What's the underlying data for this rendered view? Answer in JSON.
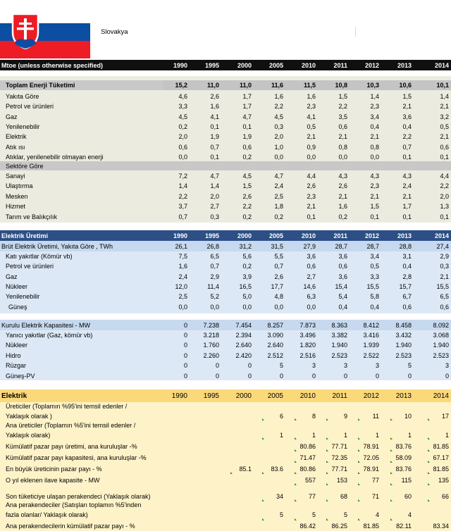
{
  "country": "Slovakya",
  "header": {
    "unit_label": "Mtoe (unless otherwise specified)",
    "years": [
      "1990",
      "1995",
      "2000",
      "2005",
      "2010",
      "2011",
      "2012",
      "2013",
      "2014"
    ]
  },
  "energy": {
    "total_label": "Toplam Enerji Tüketimi",
    "total_values": [
      "15,2",
      "11,0",
      "11,0",
      "11,6",
      "11,5",
      "10,8",
      "10,3",
      "10,6",
      "10,1"
    ],
    "by_fuel_rows": [
      {
        "label": "Yakıta Göre",
        "values": [
          "4,6",
          "2,6",
          "1,7",
          "1,6",
          "1,6",
          "1,5",
          "1,4",
          "1,5",
          "1,4"
        ]
      },
      {
        "label": "Petrol ve ürünleri",
        "values": [
          "3,3",
          "1,6",
          "1,7",
          "2,2",
          "2,3",
          "2,2",
          "2,3",
          "2,1",
          "2,1"
        ]
      },
      {
        "label": "Gaz",
        "values": [
          "4,5",
          "4,1",
          "4,7",
          "4,5",
          "4,1",
          "3,5",
          "3,4",
          "3,6",
          "3,2"
        ]
      },
      {
        "label": "Yenilenebilir",
        "values": [
          "0,2",
          "0,1",
          "0,1",
          "0,3",
          "0,5",
          "0,6",
          "0,4",
          "0,4",
          "0,5"
        ]
      },
      {
        "label": "Elektrik",
        "values": [
          "2,0",
          "1,9",
          "1,9",
          "2,0",
          "2,1",
          "2,1",
          "2,1",
          "2,2",
          "2,1"
        ]
      },
      {
        "label": "Atık ısı",
        "values": [
          "0,6",
          "0,7",
          "0,6",
          "1,0",
          "0,9",
          "0,8",
          "0,8",
          "0,7",
          "0,6"
        ]
      },
      {
        "label": "Atıklar, yenilenebilir olmayan enerji",
        "values": [
          "0,0",
          "0,1",
          "0,2",
          "0,0",
          "0,0",
          "0,0",
          "0,0",
          "0,1",
          "0,1"
        ]
      }
    ],
    "sector_label": "Sektöre Göre",
    "by_sector_rows": [
      {
        "label": "Sanayi",
        "values": [
          "7,2",
          "4,7",
          "4,5",
          "4,7",
          "4,4",
          "4,3",
          "4,3",
          "4,3",
          "4,4"
        ]
      },
      {
        "label": "Ulaştırma",
        "values": [
          "1,4",
          "1,4",
          "1,5",
          "2,4",
          "2,6",
          "2,6",
          "2,3",
          "2,4",
          "2,2"
        ]
      },
      {
        "label": "Mesken",
        "values": [
          "2,2",
          "2,0",
          "2,6",
          "2,5",
          "2,3",
          "2,1",
          "2,1",
          "2,1",
          "2,0"
        ]
      },
      {
        "label": "Hizmet",
        "values": [
          "3,7",
          "2,7",
          "2,2",
          "1,8",
          "2,1",
          "1,6",
          "1,5",
          "1,7",
          "1,3"
        ]
      },
      {
        "label": "Tarım ve Balıkçılık",
        "values": [
          "0,7",
          "0,3",
          "0,2",
          "0,2",
          "0,1",
          "0,2",
          "0,1",
          "0,1",
          "0,1"
        ]
      }
    ]
  },
  "electricity": {
    "title": "Elektrik Üretimi",
    "years": [
      "1990",
      "1995",
      "2000",
      "2005",
      "2010",
      "2011",
      "2012",
      "2013",
      "2014"
    ],
    "gross_label": "Brüt Elektrik Üretimi, Yakıta Göre , TWh",
    "gross_values": [
      "26,1",
      "26,8",
      "31,2",
      "31,5",
      "27,9",
      "28,7",
      "28,7",
      "28,8",
      "27,4"
    ],
    "rows": [
      {
        "label": "Katı yakıtlar (Kömür vb)",
        "values": [
          "7,5",
          "6,5",
          "5,6",
          "5,5",
          "3,6",
          "3,6",
          "3,4",
          "3,1",
          "2,9"
        ]
      },
      {
        "label": "Petrol ve ürünleri",
        "values": [
          "1,6",
          "0,7",
          "0,2",
          "0,7",
          "0,6",
          "0,6",
          "0,5",
          "0,4",
          "0,3"
        ]
      },
      {
        "label": "Gaz",
        "values": [
          "2,4",
          "2,9",
          "3,9",
          "2,6",
          "2,7",
          "3,6",
          "3,3",
          "2,8",
          "2,1"
        ]
      },
      {
        "label": "Nükleer",
        "values": [
          "12,0",
          "11,4",
          "16,5",
          "17,7",
          "14,6",
          "15,4",
          "15,5",
          "15,7",
          "15,5"
        ]
      },
      {
        "label": "Yenilenebilir",
        "values": [
          "2,5",
          "5,2",
          "5,0",
          "4,8",
          "6,3",
          "5,4",
          "5,8",
          "6,7",
          "6,5"
        ]
      },
      {
        "label": "Güneş",
        "values": [
          "0,0",
          "0,0",
          "0,0",
          "0,0",
          "0,0",
          "0,4",
          "0,4",
          "0,6",
          "0,6"
        ]
      }
    ],
    "capacity_label": "Kurulu Elektrik Kapasitesi - MW",
    "capacity_values": [
      "0",
      "7.238",
      "7.454",
      "8.257",
      "7.873",
      "8.363",
      "8.412",
      "8.458",
      "8.092"
    ],
    "capacity_rows": [
      {
        "label": "Yanıcı yakıtlar (Gaz, kömür vb)",
        "values": [
          "0",
          "3.218",
          "2.394",
          "3.090",
          "3.496",
          "3.382",
          "3.416",
          "3.432",
          "3.068"
        ]
      },
      {
        "label": "Nükleer",
        "values": [
          "0",
          "1.760",
          "2.640",
          "2.640",
          "1.820",
          "1.940",
          "1.939",
          "1.940",
          "1.940"
        ]
      },
      {
        "label": "Hidro",
        "values": [
          "0",
          "2.260",
          "2.420",
          "2.512",
          "2.516",
          "2.523",
          "2.522",
          "2.523",
          "2.523"
        ]
      },
      {
        "label": "Rüzgar",
        "values": [
          "0",
          "0",
          "0",
          "5",
          "3",
          "3",
          "3",
          "5",
          "3"
        ]
      },
      {
        "label": "Güneş-PV",
        "values": [
          "0",
          "0",
          "0",
          "0",
          "0",
          "0",
          "0",
          "0",
          "0"
        ]
      }
    ]
  },
  "market": {
    "title": "Elektrik",
    "years": [
      "1990",
      "1995",
      "2000",
      "2005",
      "2010",
      "2011",
      "2012",
      "2013",
      "2014"
    ],
    "r1_line1": "Üreticiler (Toplamın %95'ini temsil edenler /",
    "r1_line2": "Yaklaşık olarak )",
    "r1_values": [
      "",
      "",
      "",
      "6",
      "8",
      "9",
      "11",
      "10",
      "17"
    ],
    "r2_line1": "Ana üreticiler (Toplamın %5'ini temsil edenler /",
    "r2_line2": "Yaklaşık olarak)",
    "r2_values": [
      "",
      "",
      "",
      "1",
      "1",
      "1",
      "1",
      "1",
      "1"
    ],
    "rows": [
      {
        "label": "Kümülatif pazar payı üretimi, ana kuruluşlar -%",
        "values": [
          "",
          "",
          "",
          "",
          "80.86",
          "77.71",
          "78.91",
          "83.76",
          "81.85"
        ]
      },
      {
        "label": "Kümülatif pazar payı kapasitesi, ana kuruluşlar -%",
        "values": [
          "",
          "",
          "",
          "",
          "71.47",
          "72.35",
          "72.05",
          "58.09",
          "67.17"
        ]
      },
      {
        "label": "En büyük üreticinin pazar payı - %",
        "values": [
          "",
          "",
          "85.1",
          "83.6",
          "80.86",
          "77.71",
          "78.91",
          "83.76",
          "81.85"
        ]
      },
      {
        "label": "O yıl eklenen ilave kapasite - MW",
        "values": [
          "",
          "",
          "",
          "",
          "557",
          "153",
          "77",
          "115",
          "135"
        ]
      }
    ],
    "retail_label": "Son tüketiciye ulaşan perakendeci (Yaklaşık olarak)",
    "retail_values": [
      "",
      "",
      "",
      "34",
      "77",
      "68",
      "71",
      "60",
      "66"
    ],
    "main_retail_line1": "Ana perakendeciler (Satışları toplamın %5'inden",
    "main_retail_line2": "fazla olanlar/ Yaklaşık olarak)",
    "main_retail_values": [
      "",
      "",
      "",
      "5",
      "5",
      "5",
      "4",
      "4",
      ""
    ],
    "cum_label": "Ana perakendecilerin kümülatif pazar payı - %",
    "cum_values": [
      "",
      "",
      "",
      "",
      "86.42",
      "86.25",
      "81.85",
      "82.11",
      "83.34"
    ]
  },
  "colors": {
    "flag_white": "#ffffff",
    "flag_blue": "#0b4ea2",
    "flag_red": "#ee1c25",
    "header_dark": "#101010",
    "energy_bg": "#ecebdf",
    "electric_header": "#2d4f86",
    "electric_bg": "#dce8f5",
    "market_header": "#fbd97b",
    "market_bg": "#fef3c8"
  }
}
